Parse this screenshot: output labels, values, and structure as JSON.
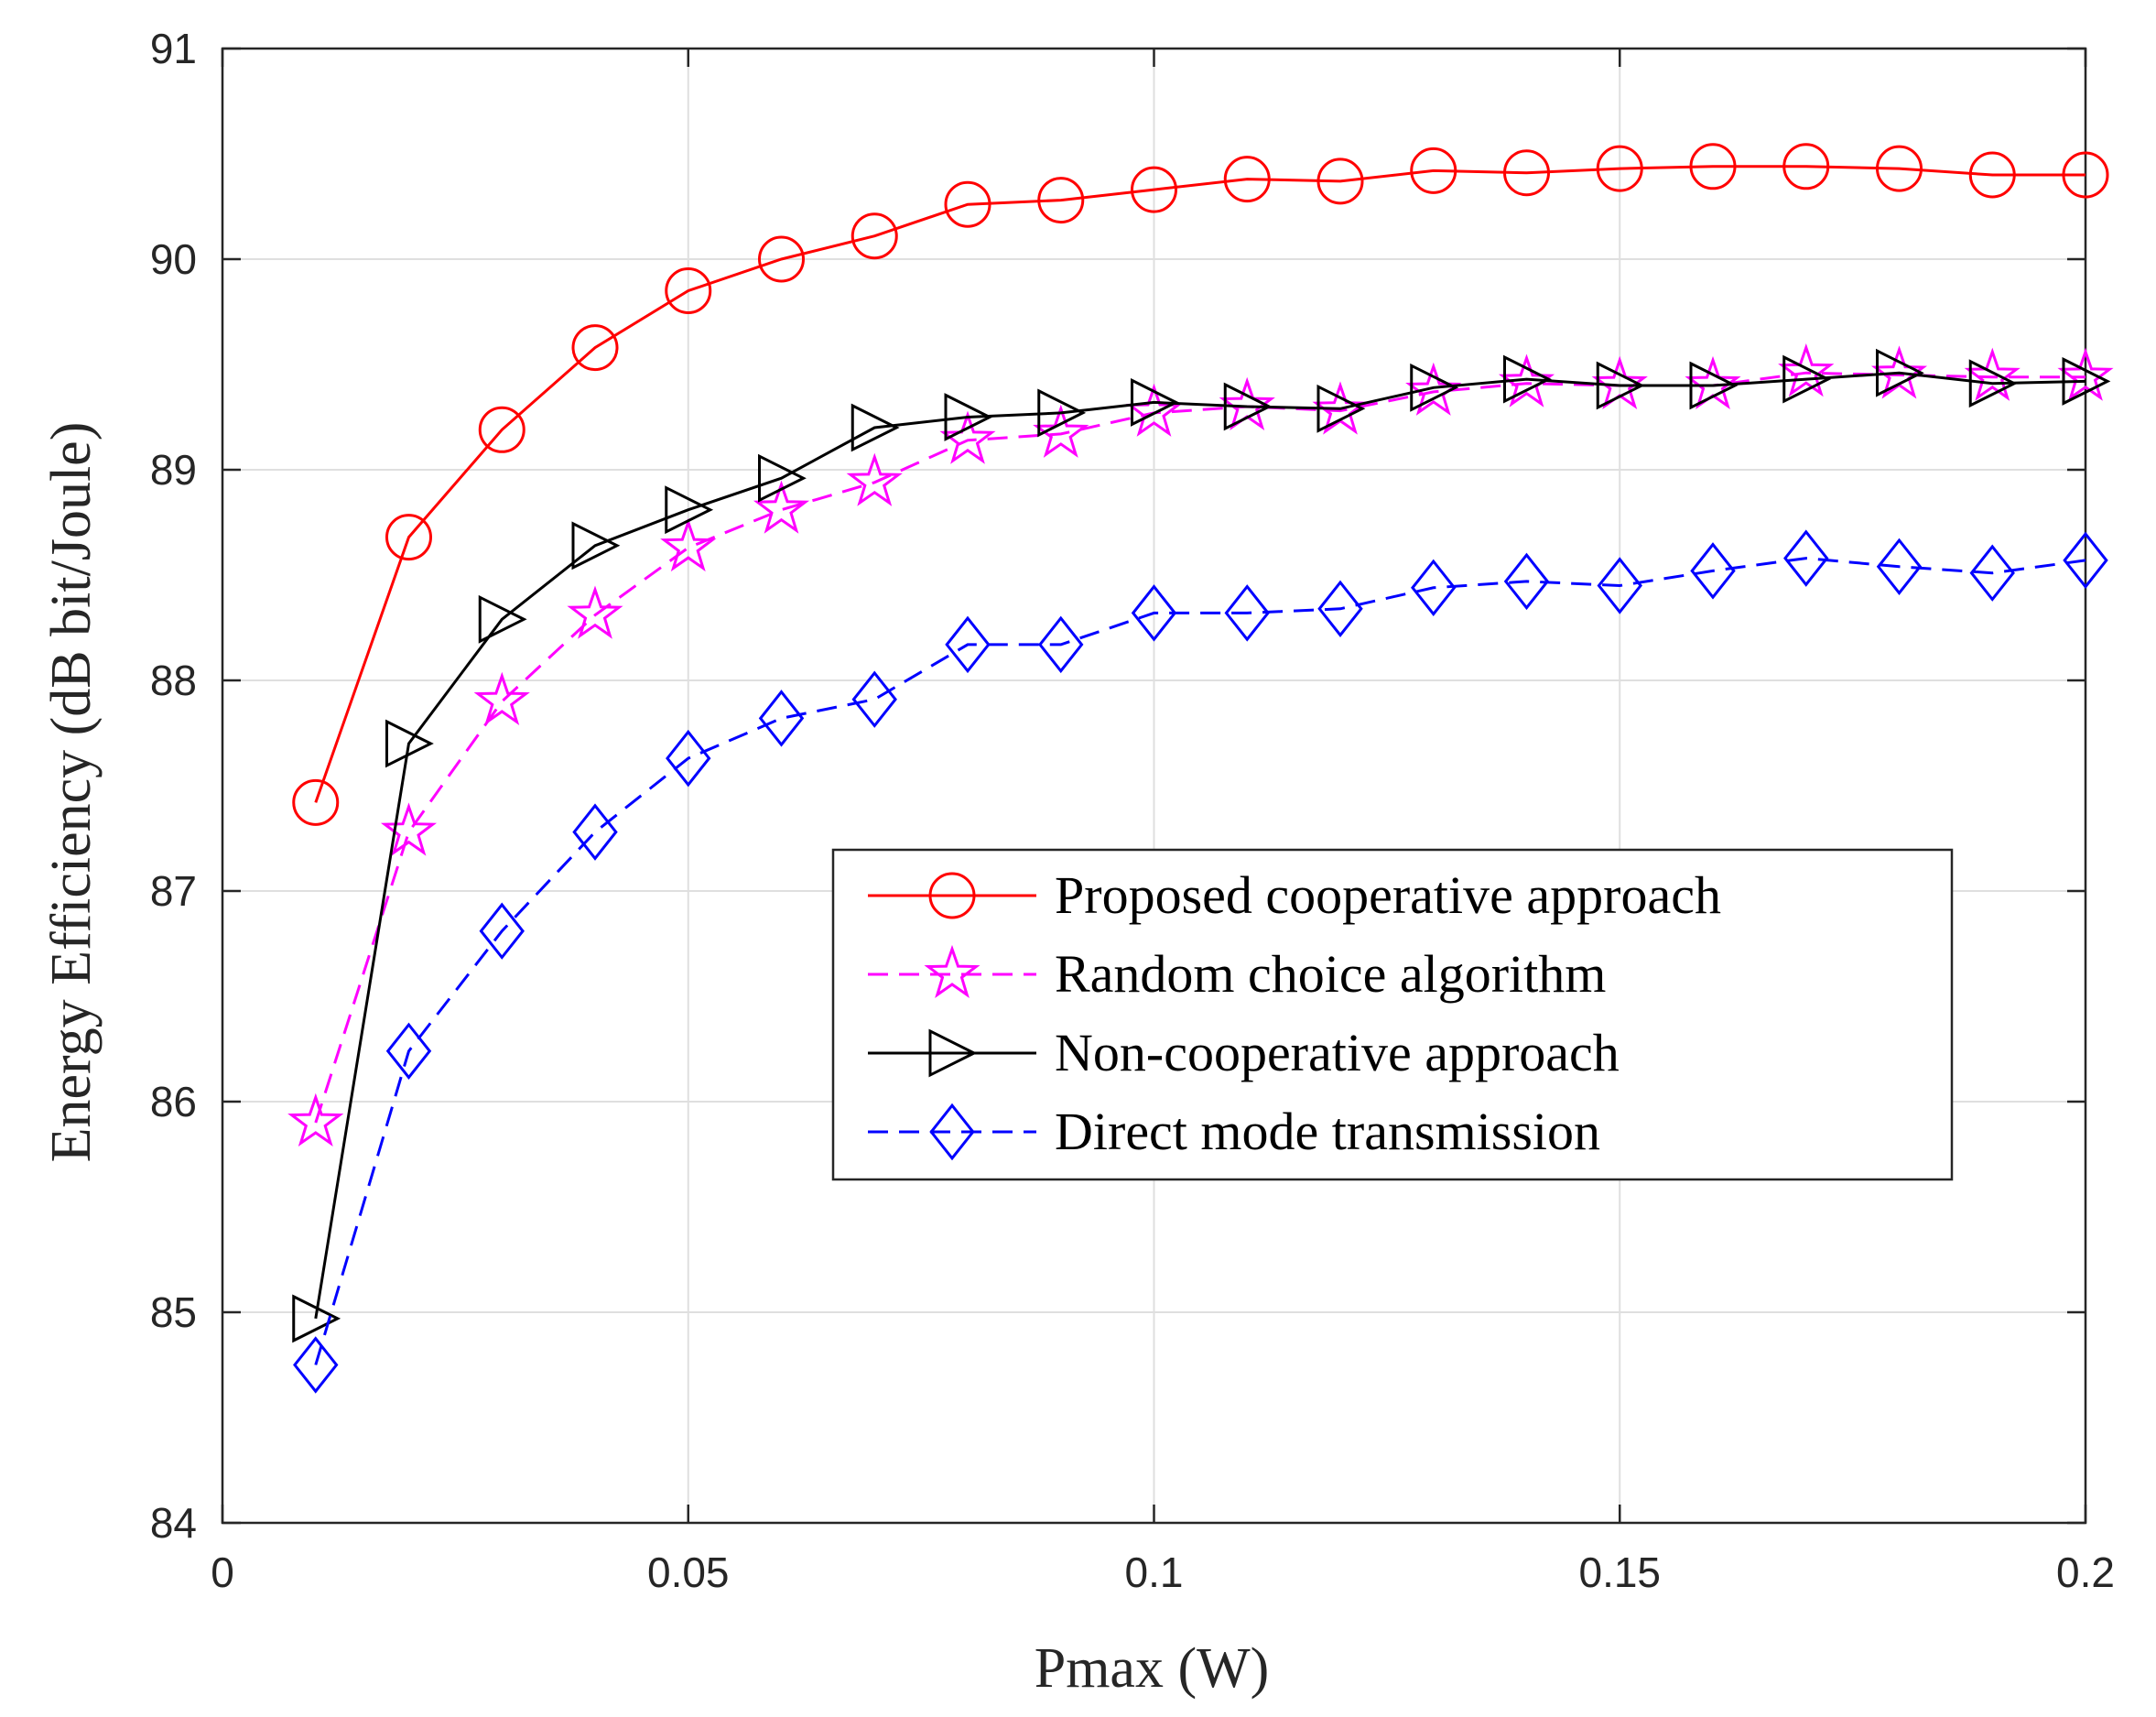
{
  "chart_data": {
    "type": "line",
    "title": "",
    "xlabel": "Pmax (W)",
    "ylabel": "Energy Efficiency (dB bit/Joule)",
    "xlim": [
      0,
      0.2
    ],
    "ylim": [
      84,
      91
    ],
    "xticks": [
      0,
      0.05,
      0.1,
      0.15,
      0.2
    ],
    "xtick_labels": [
      "0",
      "0.05",
      "0.1",
      "0.15",
      "0.2"
    ],
    "yticks": [
      84,
      85,
      86,
      87,
      88,
      89,
      90,
      91
    ],
    "ytick_labels": [
      "84",
      "85",
      "86",
      "87",
      "88",
      "89",
      "90",
      "91"
    ],
    "grid": true,
    "legend_position": "center-right",
    "x": [
      0.01,
      0.02,
      0.03,
      0.04,
      0.05,
      0.06,
      0.07,
      0.08,
      0.09,
      0.1,
      0.11,
      0.12,
      0.13,
      0.14,
      0.15,
      0.16,
      0.17,
      0.18,
      0.19,
      0.2
    ],
    "series": [
      {
        "name": "Proposed cooperative approach",
        "color": "#ff0000",
        "line_style": "solid",
        "marker": "circle",
        "values": [
          87.42,
          88.68,
          89.19,
          89.58,
          89.85,
          90.0,
          90.11,
          90.26,
          90.28,
          90.33,
          90.38,
          90.37,
          90.42,
          90.41,
          90.43,
          90.44,
          90.44,
          90.43,
          90.4,
          90.4
        ]
      },
      {
        "name": "Random choice algorithm",
        "color": "#ff00ff",
        "line_style": "dashed",
        "marker": "star",
        "values": [
          85.9,
          87.28,
          87.9,
          88.31,
          88.63,
          88.81,
          88.94,
          89.14,
          89.17,
          89.27,
          89.3,
          89.28,
          89.37,
          89.41,
          89.4,
          89.4,
          89.46,
          89.45,
          89.44,
          89.44
        ]
      },
      {
        "name": "Non-cooperative approach",
        "color": "#000000",
        "line_style": "solid",
        "marker": "triangle-right",
        "values": [
          84.97,
          87.7,
          88.29,
          88.64,
          88.81,
          88.96,
          89.2,
          89.25,
          89.27,
          89.32,
          89.3,
          89.29,
          89.39,
          89.43,
          89.4,
          89.4,
          89.43,
          89.46,
          89.41,
          89.42
        ]
      },
      {
        "name": "Direct mode transmission",
        "color": "#0000ff",
        "line_style": "dashed",
        "marker": "diamond",
        "values": [
          84.75,
          86.24,
          86.81,
          87.28,
          87.63,
          87.82,
          87.91,
          88.17,
          88.17,
          88.32,
          88.32,
          88.34,
          88.44,
          88.47,
          88.45,
          88.52,
          88.58,
          88.54,
          88.51,
          88.57
        ]
      }
    ]
  }
}
